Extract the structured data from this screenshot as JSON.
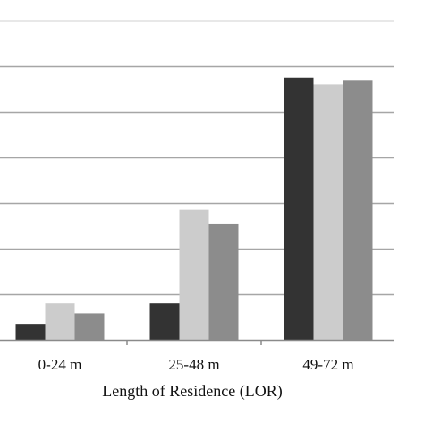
{
  "chart_data": {
    "type": "bar",
    "categories": [
      "0-24 m",
      "25-48 m",
      "49-72 m"
    ],
    "series": [
      {
        "values": [
          3.5,
          8.0,
          57.5
        ],
        "color": "#333333"
      },
      {
        "values": [
          8.0,
          28.5,
          56.0
        ],
        "color": "#cccccc"
      },
      {
        "values": [
          5.8,
          25.5,
          57.0
        ],
        "color": "#8c8c8c"
      }
    ],
    "xlabel": "Length of Residence (LOR)",
    "ylim": [
      0,
      70
    ],
    "gridline_step": 10,
    "grid": true,
    "gridline_color": "#a6a6a6"
  }
}
